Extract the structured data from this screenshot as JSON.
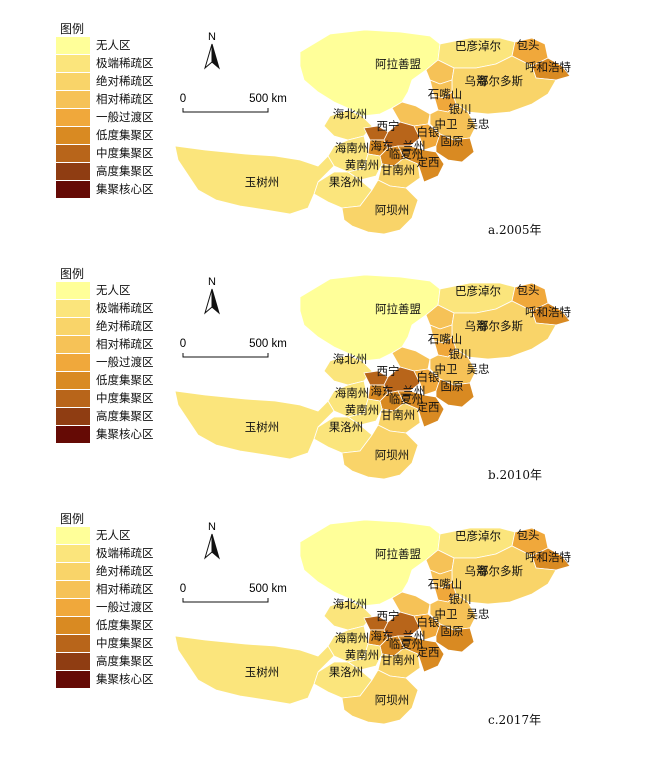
{
  "legend": {
    "title": "图例",
    "categories": [
      {
        "label": "无人区",
        "color": "#ffff99"
      },
      {
        "label": "极端稀疏区",
        "color": "#fbe57c"
      },
      {
        "label": "绝对稀疏区",
        "color": "#f9d469"
      },
      {
        "label": "相对稀疏区",
        "color": "#f6c257"
      },
      {
        "label": "一般过渡区",
        "color": "#f0a83b"
      },
      {
        "label": "低度集聚区",
        "color": "#d98a22"
      },
      {
        "label": "中度集聚区",
        "color": "#b8651a"
      },
      {
        "label": "高度集聚区",
        "color": "#8f3d12"
      },
      {
        "label": "集聚核心区",
        "color": "#650a05"
      }
    ]
  },
  "north_arrow": {
    "label": "N"
  },
  "scale_bar": {
    "start_label": "0",
    "end_label": "500 km"
  },
  "regions": [
    {
      "name": "阿拉善盟"
    },
    {
      "name": "巴彦淖尔"
    },
    {
      "name": "包头"
    },
    {
      "name": "呼和浩特"
    },
    {
      "name": "乌海"
    },
    {
      "name": "鄂尔多斯"
    },
    {
      "name": "石嘴山"
    },
    {
      "name": "银川"
    },
    {
      "name": "中卫"
    },
    {
      "name": "吴忠"
    },
    {
      "name": "海北州"
    },
    {
      "name": "西宁"
    },
    {
      "name": "海东"
    },
    {
      "name": "兰州"
    },
    {
      "name": "白银"
    },
    {
      "name": "海南州"
    },
    {
      "name": "临夏州"
    },
    {
      "name": "固原"
    },
    {
      "name": "黄南州"
    },
    {
      "name": "甘南州"
    },
    {
      "name": "定西"
    },
    {
      "name": "果洛州"
    },
    {
      "name": "玉树州"
    },
    {
      "name": "阿坝州"
    }
  ],
  "panels": [
    {
      "caption": "a.2005年",
      "region_class": {
        "阿拉善盟": 0,
        "巴彦淖尔": 1,
        "包头": 4,
        "呼和浩特": 5,
        "乌海": 3,
        "鄂尔多斯": 2,
        "石嘴山": 3,
        "银川": 4,
        "中卫": 3,
        "吴忠": 3,
        "海北州": 1,
        "西宁": 6,
        "海东": 5,
        "兰州": 6,
        "白银": 4,
        "海南州": 1,
        "临夏州": 5,
        "固原": 5,
        "黄南州": 1,
        "甘南州": 2,
        "定西": 5,
        "果洛州": 1,
        "玉树州": 1,
        "阿坝州": 2
      }
    },
    {
      "caption": "b.2010年",
      "region_class": {
        "阿拉善盟": 0,
        "巴彦淖尔": 1,
        "包头": 4,
        "呼和浩特": 5,
        "乌海": 3,
        "鄂尔多斯": 2,
        "石嘴山": 3,
        "银川": 4,
        "中卫": 3,
        "吴忠": 3,
        "海北州": 1,
        "西宁": 6,
        "海东": 5,
        "兰州": 6,
        "白银": 4,
        "海南州": 1,
        "临夏州": 5,
        "固原": 5,
        "黄南州": 1,
        "甘南州": 2,
        "定西": 5,
        "果洛州": 1,
        "玉树州": 1,
        "阿坝州": 2
      }
    },
    {
      "caption": "c.2017年",
      "region_class": {
        "阿拉善盟": 0,
        "巴彦淖尔": 1,
        "包头": 4,
        "呼和浩特": 5,
        "乌海": 3,
        "鄂尔多斯": 2,
        "石嘴山": 3,
        "银川": 4,
        "中卫": 3,
        "吴忠": 3,
        "海北州": 1,
        "西宁": 6,
        "海东": 5,
        "兰州": 6,
        "白银": 4,
        "海南州": 1,
        "临夏州": 5,
        "固原": 5,
        "黄南州": 1,
        "甘南州": 2,
        "定西": 5,
        "果洛州": 1,
        "玉树州": 1,
        "阿坝州": 2
      }
    }
  ]
}
